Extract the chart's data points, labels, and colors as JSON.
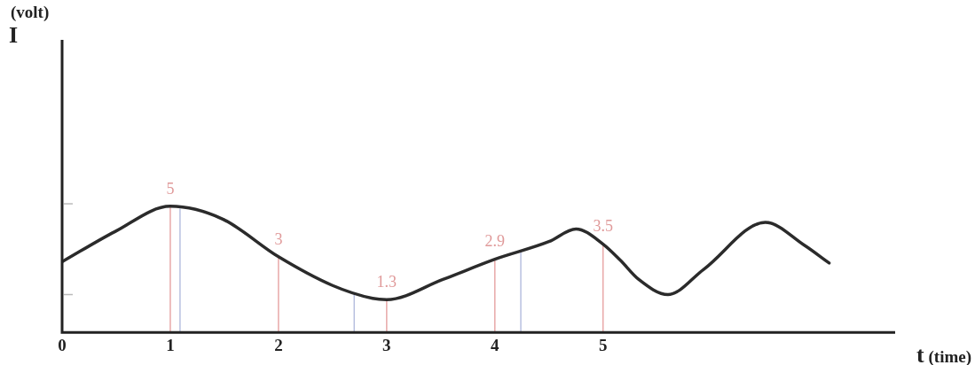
{
  "chart_data": {
    "type": "line",
    "xlabel": "t (time)",
    "ylabel": "(volt) I",
    "x": [
      0,
      0.49,
      1,
      1.48,
      2,
      2.5,
      2.87,
      3,
      3.52,
      4,
      4.5,
      4.75,
      5,
      5.16,
      5.33,
      5.6,
      5.93,
      6.5,
      6.86,
      7.09
    ],
    "series": [
      {
        "color": "#2b2b2b",
        "values": [
          2.8,
          4.0,
          5,
          4.5,
          3,
          1.86,
          1.35,
          1.3,
          2.1,
          2.9,
          3.6,
          4.1,
          3.5,
          2.86,
          2.1,
          1.5,
          2.5,
          4.36,
          3.46,
          2.75
        ],
        "value_labels": [
          null,
          null,
          "5",
          null,
          "3",
          null,
          null,
          "1.3",
          null,
          "2.9",
          null,
          null,
          "3.5",
          null,
          null,
          null,
          null,
          null,
          null,
          null
        ]
      }
    ],
    "xlim": [
      0,
      7.7
    ],
    "xticks": [
      0,
      1,
      2,
      3,
      4,
      5
    ],
    "ylim": [
      0,
      11.6
    ],
    "yticks": [
      {
        "value": 5.1,
        "label": null
      },
      {
        "value": 1.5,
        "label": null
      }
    ],
    "ref_lines": [
      {
        "axis": "x",
        "value": 1,
        "color": "#e8a8a8"
      },
      {
        "axis": "x",
        "value": 1.09,
        "color": "#b8c0e0"
      },
      {
        "axis": "x",
        "value": 2,
        "color": "#e8a8a8"
      },
      {
        "axis": "x",
        "value": 2.7,
        "color": "#b8c0e0"
      },
      {
        "axis": "x",
        "value": 3,
        "color": "#e8a8a8"
      },
      {
        "axis": "x",
        "value": 4,
        "color": "#e8a8a8"
      },
      {
        "axis": "x",
        "value": 4.24,
        "color": "#b8c0e0"
      },
      {
        "axis": "x",
        "value": 5,
        "color": "#e8a8a8"
      }
    ],
    "grid": false,
    "legend": false,
    "marker": "none",
    "line_style": "solid"
  }
}
